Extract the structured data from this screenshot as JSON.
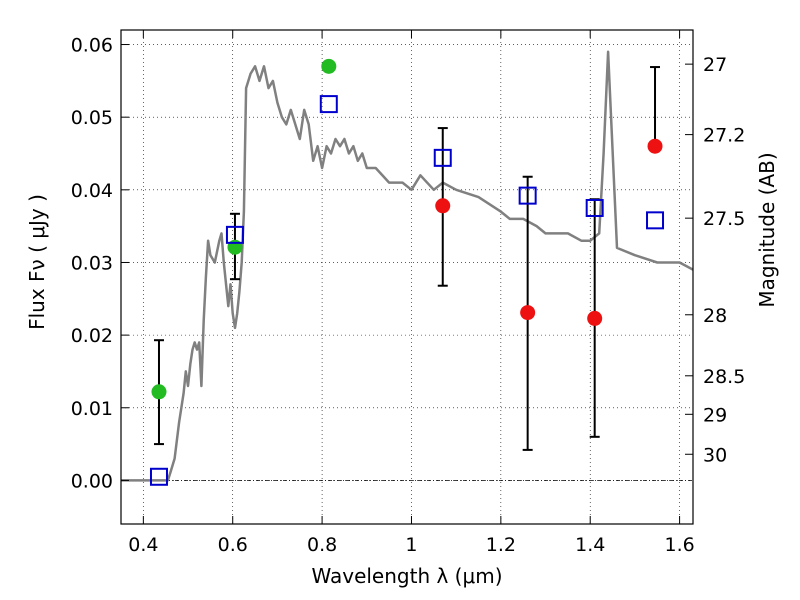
{
  "chart_data": {
    "type": "scatter",
    "title": "",
    "xlabel": "Wavelength  λ (μm)",
    "ylabel": "Flux  Fν  ( μJy )",
    "right_ylabel": "Magnitude (AB)",
    "xlim": [
      0.35,
      1.63
    ],
    "ylim": [
      -0.006,
      0.062
    ],
    "grid": true,
    "x_ticks": [
      0.4,
      0.6,
      0.8,
      1.0,
      1.2,
      1.4,
      1.6
    ],
    "x_tick_labels": [
      "0.4",
      "0.6",
      "0.8",
      "1",
      "1.2",
      "1.4",
      "1.6"
    ],
    "y_ticks": [
      0.0,
      0.01,
      0.02,
      0.03,
      0.04,
      0.05,
      0.06
    ],
    "y_tick_labels": [
      "0.00",
      "0.01",
      "0.02",
      "0.03",
      "0.04",
      "0.05",
      "0.06"
    ],
    "right_ticks": [
      {
        "label": "27",
        "flux": 0.0573
      },
      {
        "label": "27.2",
        "flux": 0.0476
      },
      {
        "label": "27.5",
        "flux": 0.0361
      },
      {
        "label": "28",
        "flux": 0.0228
      },
      {
        "label": "28.5",
        "flux": 0.0144
      },
      {
        "label": "29",
        "flux": 0.0091
      },
      {
        "label": "30",
        "flux": 0.0036
      }
    ],
    "colors": {
      "spectrum": "#808080",
      "green_points": "#22bb22",
      "red_points": "#ee1111",
      "model_squares": "#0000cc",
      "error_bars": "#000000"
    },
    "series": [
      {
        "kind": "line",
        "color": "#808080",
        "x": [
          0.35,
          0.455,
          0.46,
          0.47,
          0.48,
          0.49,
          0.495,
          0.5,
          0.505,
          0.51,
          0.515,
          0.52,
          0.525,
          0.53,
          0.535,
          0.54,
          0.545,
          0.55,
          0.56,
          0.57,
          0.575,
          0.58,
          0.59,
          0.595,
          0.6,
          0.605,
          0.61,
          0.615,
          0.62,
          0.625,
          0.63,
          0.64,
          0.65,
          0.66,
          0.67,
          0.68,
          0.69,
          0.7,
          0.71,
          0.72,
          0.73,
          0.74,
          0.75,
          0.76,
          0.77,
          0.78,
          0.79,
          0.8,
          0.81,
          0.82,
          0.83,
          0.84,
          0.85,
          0.86,
          0.87,
          0.88,
          0.89,
          0.9,
          0.92,
          0.95,
          0.98,
          1.0,
          1.02,
          1.05,
          1.07,
          1.1,
          1.15,
          1.2,
          1.22,
          1.25,
          1.28,
          1.3,
          1.32,
          1.35,
          1.38,
          1.4,
          1.42,
          1.43,
          1.44,
          1.46,
          1.5,
          1.55,
          1.6,
          1.63
        ],
        "y": [
          0.0,
          0.0,
          0.001,
          0.003,
          0.008,
          0.012,
          0.015,
          0.013,
          0.016,
          0.018,
          0.019,
          0.018,
          0.019,
          0.013,
          0.022,
          0.028,
          0.033,
          0.031,
          0.03,
          0.033,
          0.034,
          0.03,
          0.024,
          0.027,
          0.023,
          0.021,
          0.023,
          0.026,
          0.03,
          0.037,
          0.054,
          0.056,
          0.057,
          0.055,
          0.057,
          0.054,
          0.055,
          0.052,
          0.05,
          0.049,
          0.051,
          0.049,
          0.047,
          0.051,
          0.049,
          0.044,
          0.046,
          0.043,
          0.046,
          0.045,
          0.047,
          0.046,
          0.047,
          0.045,
          0.046,
          0.044,
          0.045,
          0.043,
          0.043,
          0.041,
          0.041,
          0.04,
          0.042,
          0.04,
          0.041,
          0.04,
          0.039,
          0.037,
          0.036,
          0.036,
          0.035,
          0.034,
          0.034,
          0.034,
          0.033,
          0.033,
          0.034,
          0.045,
          0.059,
          0.032,
          0.031,
          0.03,
          0.03,
          0.029
        ]
      },
      {
        "kind": "points",
        "color": "#22bb22",
        "x": [
          0.435,
          0.605,
          0.815
        ],
        "y": [
          0.0122,
          0.0321,
          0.057
        ],
        "yerr_low": [
          0.005,
          0.0277,
          null
        ],
        "yerr_high": [
          0.0193,
          0.0367,
          null
        ]
      },
      {
        "kind": "points",
        "color": "#ee1111",
        "x": [
          1.07,
          1.26,
          1.41,
          1.545
        ],
        "y": [
          0.0378,
          0.0231,
          0.0223,
          0.046
        ],
        "yerr_low": [
          0.0268,
          0.0042,
          0.006,
          null
        ],
        "yerr_high": [
          0.0485,
          0.0418,
          0.0387,
          0.0569
        ]
      },
      {
        "kind": "squares",
        "color": "#0000cc",
        "x": [
          0.435,
          0.605,
          0.815,
          1.07,
          1.26,
          1.41,
          1.545
        ],
        "y": [
          0.0005,
          0.0338,
          0.0518,
          0.0444,
          0.0392,
          0.0375,
          0.0358
        ]
      }
    ]
  }
}
